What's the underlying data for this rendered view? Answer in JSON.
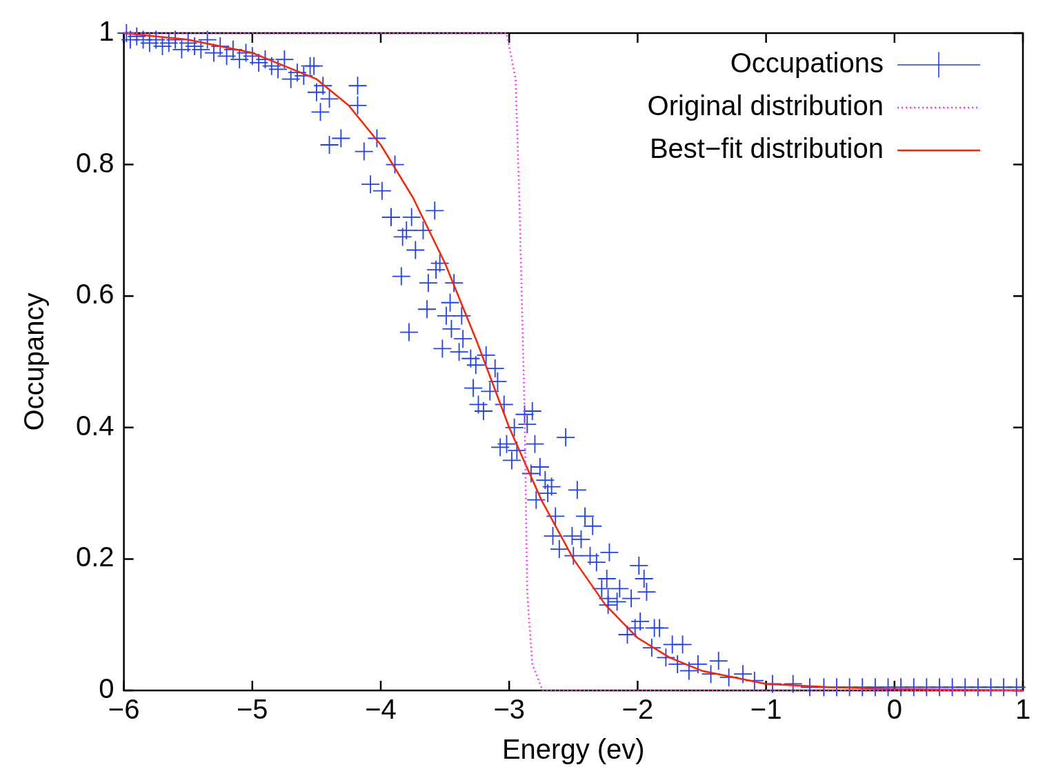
{
  "chart_data": {
    "type": "scatter",
    "xlabel": "Energy (ev)",
    "ylabel": "Occupancy",
    "xlim": [
      -6,
      1
    ],
    "ylim": [
      0,
      1
    ],
    "xticks": [
      {
        "value": -6,
        "label": "−6"
      },
      {
        "value": -5,
        "label": "−5"
      },
      {
        "value": -4,
        "label": "−4"
      },
      {
        "value": -3,
        "label": "−3"
      },
      {
        "value": -2,
        "label": "−2"
      },
      {
        "value": -1,
        "label": "−1"
      },
      0,
      1
    ],
    "yticks": [
      0,
      0.2,
      0.4,
      0.6,
      0.8,
      1
    ],
    "grid": false,
    "legend": "top right",
    "series": [
      {
        "name": "Occupations",
        "type": "scatter",
        "color": "#1f3fff",
        "marker": "cross",
        "x": [
          -5.98,
          -5.95,
          -5.9,
          -5.85,
          -5.8,
          -5.75,
          -5.7,
          -5.65,
          -5.6,
          -5.55,
          -5.5,
          -5.45,
          -5.4,
          -5.35,
          -5.3,
          -5.25,
          -5.2,
          -5.15,
          -5.1,
          -5.05,
          -5.0,
          -4.95,
          -4.9,
          -4.85,
          -4.8,
          -4.75,
          -4.7,
          -4.65,
          -4.6,
          -4.55,
          -4.5,
          -4.45,
          -4.4,
          -4.52,
          -4.18,
          -4.18,
          -4.4,
          -4.03,
          -3.89,
          -4.08,
          -3.99,
          -3.92,
          -3.84,
          -3.78,
          -4.31,
          -4.47,
          -4.13,
          -3.58,
          -3.92,
          -3.76,
          -3.8,
          -3.67,
          -3.83,
          -3.73,
          -3.54,
          -3.57,
          -3.63,
          -3.43,
          -3.46,
          -3.64,
          -3.37,
          -3.49,
          -3.45,
          -3.36,
          -3.52,
          -3.39,
          -3.3,
          -3.18,
          -3.26,
          -3.11,
          -3.09,
          -3.28,
          -3.15,
          -3.24,
          -3.2,
          -3.04,
          -2.82,
          -2.88,
          -2.86,
          -2.96,
          -2.56,
          -2.8,
          -3.07,
          -3.02,
          -2.94,
          -2.98,
          -2.76,
          -2.83,
          -2.72,
          -2.67,
          -2.47,
          -2.7,
          -2.79,
          -2.64,
          -2.41,
          -2.35,
          -2.66,
          -2.51,
          -2.44,
          -2.61,
          -2.5,
          -2.37,
          -2.22,
          -2.32,
          -1.99,
          -1.95,
          -1.93,
          -2.24,
          -2.28,
          -2.14,
          -2.23,
          -2.16,
          -2.05,
          -2.23,
          -1.98,
          -2.02,
          -2.08,
          -1.87,
          -1.83,
          -1.73,
          -1.65,
          -1.89,
          -1.78,
          -1.69,
          -1.53,
          -1.37,
          -1.6,
          -1.43,
          -1.29,
          -1.18,
          -1.09,
          -0.95,
          -0.79,
          -0.66,
          -0.55,
          -0.45,
          -0.35,
          -0.25,
          -0.15,
          -0.05,
          0.05,
          0.15,
          0.25,
          0.35,
          0.45,
          0.55,
          0.65,
          0.75,
          0.85,
          0.95
        ],
        "values": [
          1.0,
          0.99,
          0.995,
          0.99,
          0.985,
          0.99,
          0.98,
          0.985,
          0.99,
          0.975,
          0.985,
          0.98,
          0.975,
          0.99,
          0.97,
          0.98,
          0.965,
          0.975,
          0.96,
          0.97,
          0.965,
          0.955,
          0.96,
          0.95,
          0.945,
          0.96,
          0.93,
          0.94,
          0.935,
          0.95,
          0.91,
          0.92,
          0.9,
          0.95,
          0.92,
          0.89,
          0.83,
          0.84,
          0.8,
          0.77,
          0.76,
          0.72,
          0.63,
          0.545,
          0.84,
          0.88,
          0.82,
          0.73,
          0.72,
          0.72,
          0.7,
          0.7,
          0.69,
          0.67,
          0.65,
          0.64,
          0.62,
          0.62,
          0.59,
          0.58,
          0.57,
          0.57,
          0.55,
          0.535,
          0.52,
          0.515,
          0.505,
          0.51,
          0.495,
          0.49,
          0.47,
          0.46,
          0.455,
          0.435,
          0.425,
          0.435,
          0.425,
          0.42,
          0.405,
          0.4,
          0.385,
          0.375,
          0.37,
          0.375,
          0.365,
          0.35,
          0.34,
          0.33,
          0.32,
          0.31,
          0.305,
          0.3,
          0.29,
          0.265,
          0.265,
          0.25,
          0.235,
          0.235,
          0.23,
          0.215,
          0.205,
          0.205,
          0.21,
          0.195,
          0.19,
          0.17,
          0.15,
          0.17,
          0.155,
          0.155,
          0.14,
          0.135,
          0.14,
          0.13,
          0.105,
          0.095,
          0.085,
          0.095,
          0.095,
          0.07,
          0.07,
          0.065,
          0.05,
          0.04,
          0.04,
          0.045,
          0.03,
          0.025,
          0.02,
          0.025,
          0.015,
          0.01,
          0.01,
          0.005,
          0.005,
          0.005,
          0.005,
          0.005,
          0.005,
          0.005,
          0.005,
          0.005,
          0.005,
          0.005,
          0.005,
          0.005,
          0.005,
          0.005,
          0.005,
          0.005
        ]
      },
      {
        "name": "Original distribution",
        "type": "line",
        "color": "#ff33ff",
        "marker": "none",
        "line_style": "dotted",
        "x": [
          -6,
          -3.12,
          -3.02,
          -2.95,
          -2.92,
          -2.88,
          -2.86,
          -2.82,
          -2.74,
          1
        ],
        "values": [
          1,
          1,
          1,
          0.93,
          0.74,
          0.42,
          0.15,
          0.04,
          0,
          0
        ]
      },
      {
        "name": "Best−fit distribution",
        "type": "line",
        "color": "#ff2200",
        "marker": "none",
        "line_style": "solid",
        "x": [
          -6,
          -5.5,
          -5,
          -4.5,
          -4.25,
          -4,
          -3.75,
          -3.5,
          -3.25,
          -3,
          -2.75,
          -2.5,
          -2.25,
          -2,
          -1.75,
          -1.5,
          -1.25,
          -1,
          -0.5,
          0,
          1
        ],
        "values": [
          1.0,
          0.99,
          0.97,
          0.93,
          0.89,
          0.83,
          0.75,
          0.65,
          0.53,
          0.4,
          0.29,
          0.2,
          0.13,
          0.08,
          0.05,
          0.03,
          0.02,
          0.01,
          0.005,
          0.002,
          0
        ]
      }
    ]
  }
}
